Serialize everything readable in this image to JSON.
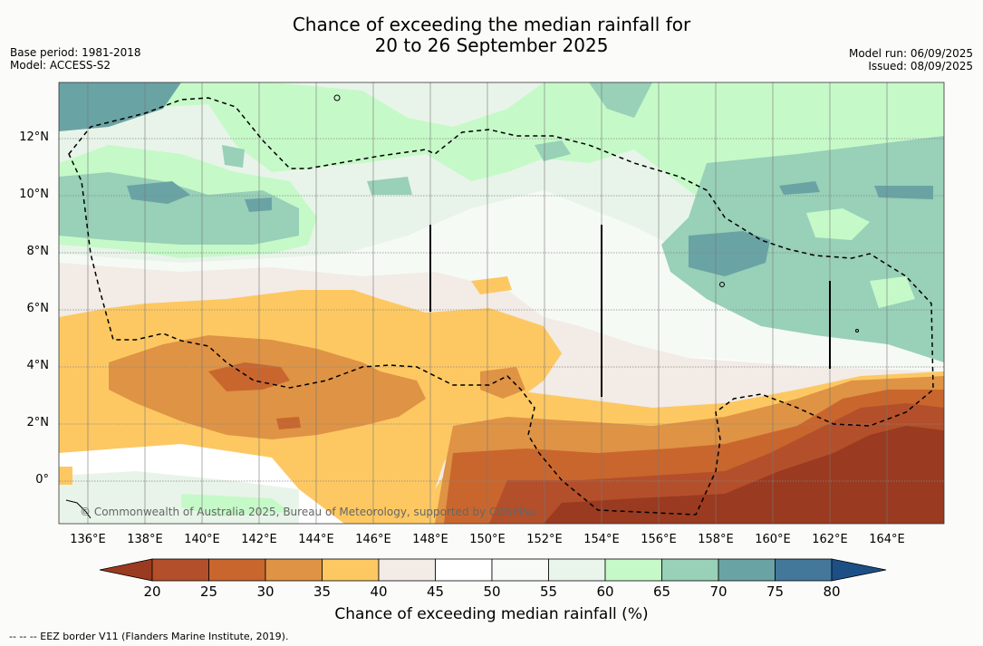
{
  "title_line1": "Chance of exceeding the median rainfall for",
  "title_line2": "20 to 26 September 2025",
  "left_meta": {
    "base_period": "Base period: 1981-2018",
    "model": "Model: ACCESS-S2"
  },
  "right_meta": {
    "model_run": "Model run: 06/09/2025",
    "issued": "Issued: 08/09/2025"
  },
  "copyright": "© Commonwealth of Australia 2025, Bureau of Meteorology, supported by COSPPac",
  "lat_labels": [
    "12°N",
    "10°N",
    "8°N",
    "6°N",
    "4°N",
    "2°N",
    "0°"
  ],
  "lon_labels": [
    "136°E",
    "138°E",
    "140°E",
    "142°E",
    "144°E",
    "146°E",
    "148°E",
    "150°E",
    "152°E",
    "154°E",
    "156°E",
    "158°E",
    "160°E",
    "162°E",
    "164°E"
  ],
  "colorbar": {
    "ticks": [
      "20",
      "25",
      "30",
      "35",
      "40",
      "45",
      "50",
      "55",
      "60",
      "65",
      "70",
      "75",
      "80"
    ],
    "colors": [
      "#9a3a20",
      "#b34f2a",
      "#c9662e",
      "#df9344",
      "#fdc862",
      "#f2ebe6",
      "#ffffff",
      "#f7faf6",
      "#e9f5ea",
      "#c6f9c8",
      "#98d0b8",
      "#6aa3a4",
      "#43789a",
      "#1c4f86"
    ],
    "label": "Chance of exceeding median rainfall (%)"
  },
  "footnote": "--  --  -- EEZ border V11 (Flanders Marine Institute, 2019)."
}
